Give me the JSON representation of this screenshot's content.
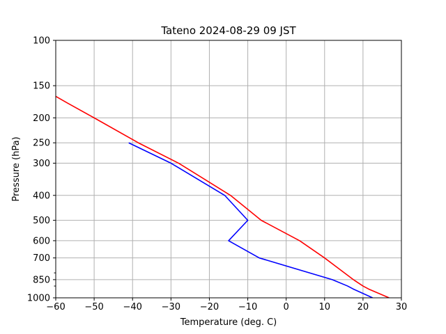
{
  "chart_data": {
    "type": "line",
    "title": "Tateno  2024-08-29 09 JST",
    "xlabel": "Temperature (deg. C)",
    "ylabel": "Pressure (hPa)",
    "xlim": [
      -60,
      30
    ],
    "ylim": [
      1000,
      100
    ],
    "y_scale": "log",
    "y_inverted": true,
    "grid": true,
    "x_ticks": [
      -60,
      -50,
      -40,
      -30,
      -20,
      -10,
      0,
      10,
      20,
      30
    ],
    "x_tick_labels": [
      "−60",
      "−50",
      "−40",
      "−30",
      "−20",
      "−10",
      "0",
      "10",
      "20",
      "30"
    ],
    "y_ticks": [
      100,
      150,
      200,
      250,
      300,
      400,
      500,
      600,
      700,
      850,
      1000
    ],
    "y_tick_labels": [
      "100",
      "150",
      "200",
      "250",
      "300",
      "400",
      "500",
      "600",
      "700",
      "850",
      "1000"
    ],
    "y_minor_ticks": [
      800,
      900
    ],
    "series": [
      {
        "color": "#ff0000",
        "points": [
          [
            26.8,
            1000
          ],
          [
            21.5,
            925
          ],
          [
            20.0,
            900
          ],
          [
            17.5,
            850
          ],
          [
            10.0,
            700
          ],
          [
            3.5,
            600
          ],
          [
            -6.5,
            500
          ],
          [
            -14.5,
            400
          ],
          [
            -28.0,
            300
          ],
          [
            -38.5,
            250
          ],
          [
            -50.0,
            200
          ],
          [
            -57.0,
            175
          ],
          [
            -60.0,
            165
          ]
        ]
      },
      {
        "color": "#0000ff",
        "points": [
          [
            22.5,
            1000
          ],
          [
            17.5,
            925
          ],
          [
            16.0,
            900
          ],
          [
            12.0,
            850
          ],
          [
            -7.0,
            700
          ],
          [
            -15.0,
            600
          ],
          [
            -10.0,
            500
          ],
          [
            -16.0,
            400
          ],
          [
            -30.0,
            300
          ],
          [
            -41.0,
            250
          ]
        ]
      }
    ]
  }
}
